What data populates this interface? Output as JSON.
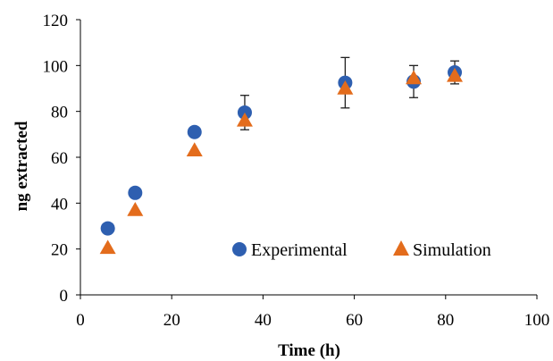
{
  "chart_data": {
    "type": "scatter",
    "title": "",
    "xlabel": "Time (h)",
    "ylabel": "ng extracted",
    "xlim": [
      0,
      100
    ],
    "ylim": [
      0,
      120
    ],
    "x_ticks": [
      0,
      20,
      40,
      60,
      80,
      100
    ],
    "y_ticks": [
      0,
      20,
      40,
      60,
      80,
      100,
      120
    ],
    "grid": false,
    "legend_position": "bottom-right",
    "series": [
      {
        "name": "Experimental",
        "marker": "circle",
        "color": "#2e5fb0",
        "x": [
          6,
          12,
          25,
          36,
          58,
          73,
          82
        ],
        "y": [
          29,
          44.5,
          71,
          79.5,
          92.5,
          93,
          97
        ],
        "error": [
          null,
          null,
          null,
          7.5,
          11,
          7,
          5
        ]
      },
      {
        "name": "Simulation",
        "marker": "triangle",
        "color": "#e36c1c",
        "x": [
          6,
          12,
          25,
          36,
          58,
          73,
          82
        ],
        "y": [
          20.5,
          37,
          63,
          76,
          90,
          94.5,
          95.5
        ],
        "error": [
          null,
          null,
          null,
          null,
          null,
          null,
          null
        ]
      }
    ]
  }
}
